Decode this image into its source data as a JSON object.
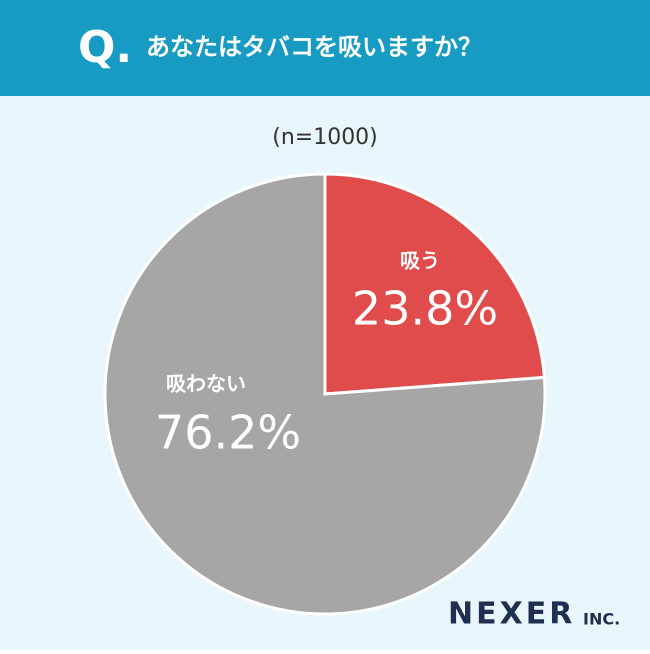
{
  "header": {
    "mark": "Q.",
    "question": "あなたはタバコを吸いますか？"
  },
  "chart_data": {
    "type": "pie",
    "subtitle": "(n=1000)",
    "categories": [
      "吸う",
      "吸わない"
    ],
    "values": [
      23.8,
      76.2
    ],
    "value_labels": [
      "23.8%",
      "76.2%"
    ],
    "colors": [
      "#e04b4b",
      "#a6a6a6"
    ]
  },
  "brand": {
    "name": "NEXER",
    "suffix": "INC."
  }
}
